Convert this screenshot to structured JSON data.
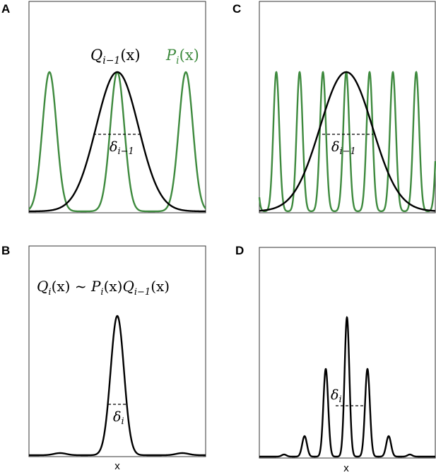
{
  "panels": {
    "A": {
      "letter": "A",
      "label_Q": "Q",
      "label_Q_sub": "i−1",
      "label_Q_arg": "(x)",
      "label_P": "P",
      "label_P_sub": "i",
      "label_P_arg": "(x)",
      "delta": "δ",
      "delta_sub": "i−1"
    },
    "B": {
      "letter": "B",
      "equation": {
        "q": "Q",
        "q_sub": "i",
        "q_arg": "(x) ~ ",
        "p": "P",
        "p_sub": "i",
        "p_arg": "(x)",
        "q2": "Q",
        "q2_sub": "i−1",
        "q2_arg": "(x)"
      },
      "delta": "δ",
      "delta_sub": "i",
      "xlabel": "x"
    },
    "C": {
      "letter": "C",
      "delta": "δ",
      "delta_sub": "i−1"
    },
    "D": {
      "letter": "D",
      "delta": "δ",
      "delta_sub": "i",
      "xlabel": "x"
    }
  },
  "colors": {
    "green": "#3e8a3e",
    "black": "#000000"
  }
}
